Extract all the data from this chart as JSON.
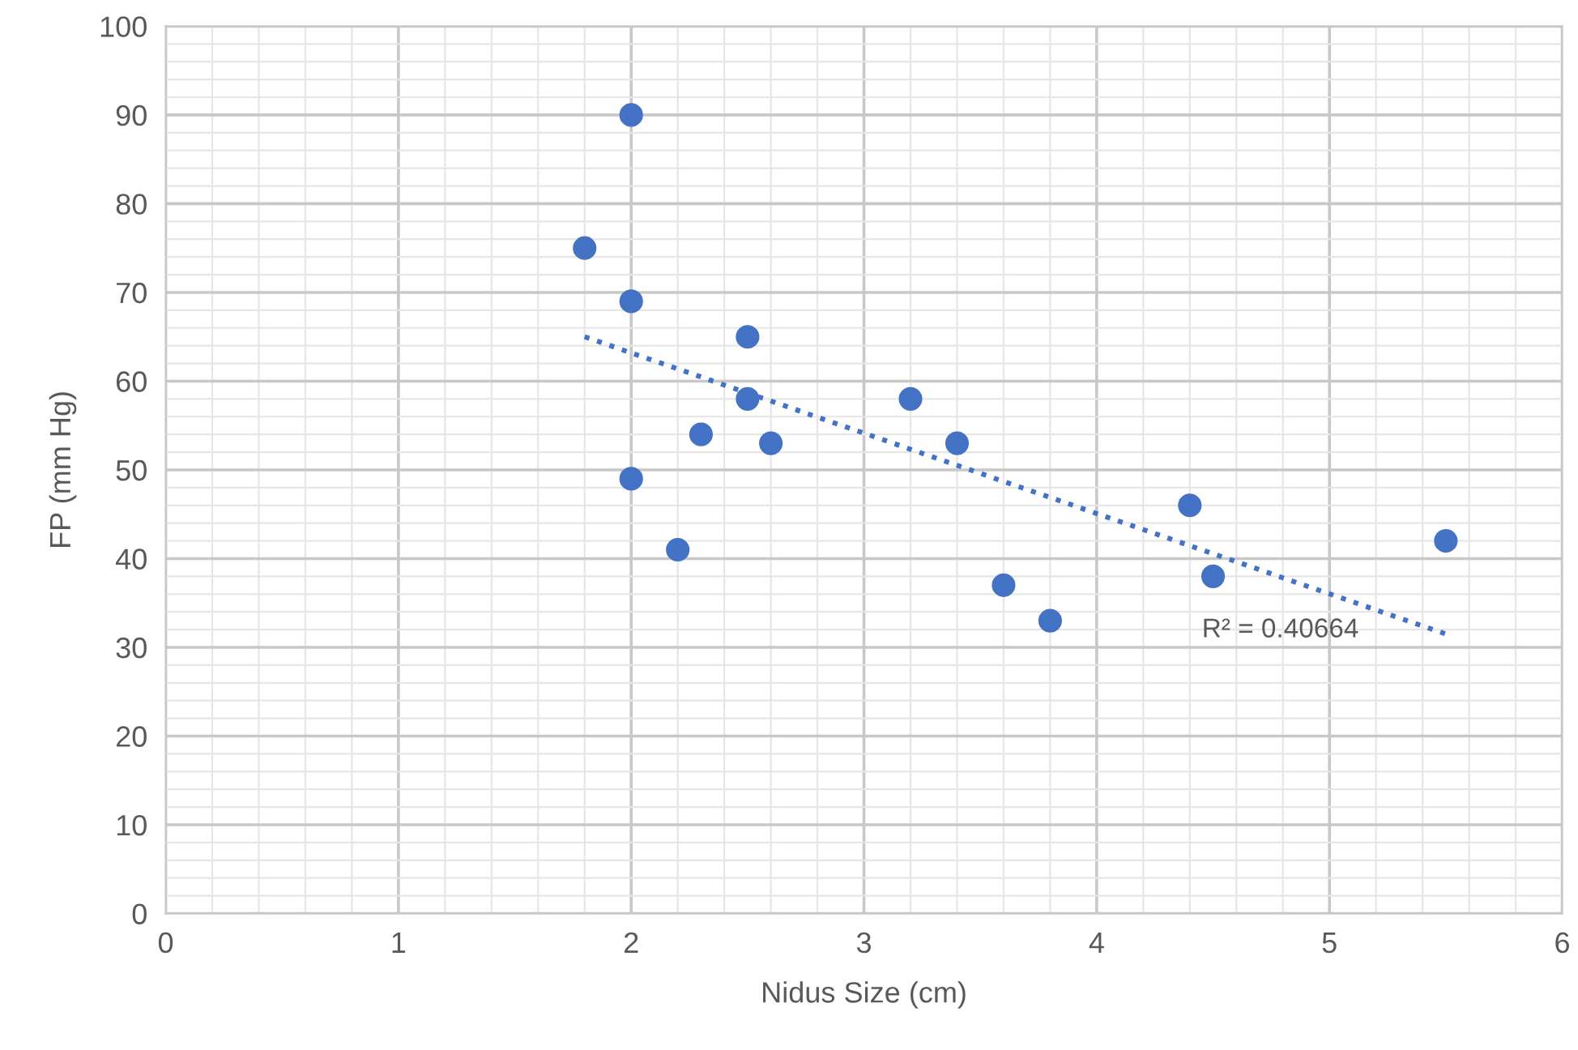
{
  "chart_data": {
    "type": "scatter",
    "xlabel": "Nidus Size (cm)",
    "ylabel": "FP (mm Hg)",
    "series": [
      {
        "color": "#4472c4",
        "marker": "circle",
        "x": [
          1.8,
          2.0,
          2.0,
          2.0,
          2.2,
          2.3,
          2.5,
          2.5,
          2.6,
          3.2,
          3.4,
          3.6,
          3.8,
          4.4,
          4.5,
          5.5
        ],
        "values": [
          75,
          90,
          69,
          49,
          41,
          54,
          65,
          58,
          53,
          58,
          53,
          37,
          33,
          46,
          38,
          42
        ]
      },
      {
        "type": "line",
        "color": "#4472c4",
        "line_style": "dotted",
        "x": [
          1.8,
          5.5
        ],
        "values": [
          65,
          31.5
        ]
      }
    ],
    "annotations": [
      "R² = 0.40664"
    ],
    "xlim": [
      0,
      6
    ],
    "xticks": [
      0,
      1,
      2,
      3,
      4,
      5,
      6
    ],
    "ylim": [
      0,
      100
    ],
    "yticks": [
      0,
      10,
      20,
      30,
      40,
      50,
      60,
      70,
      80,
      90,
      100
    ],
    "grid": true
  }
}
